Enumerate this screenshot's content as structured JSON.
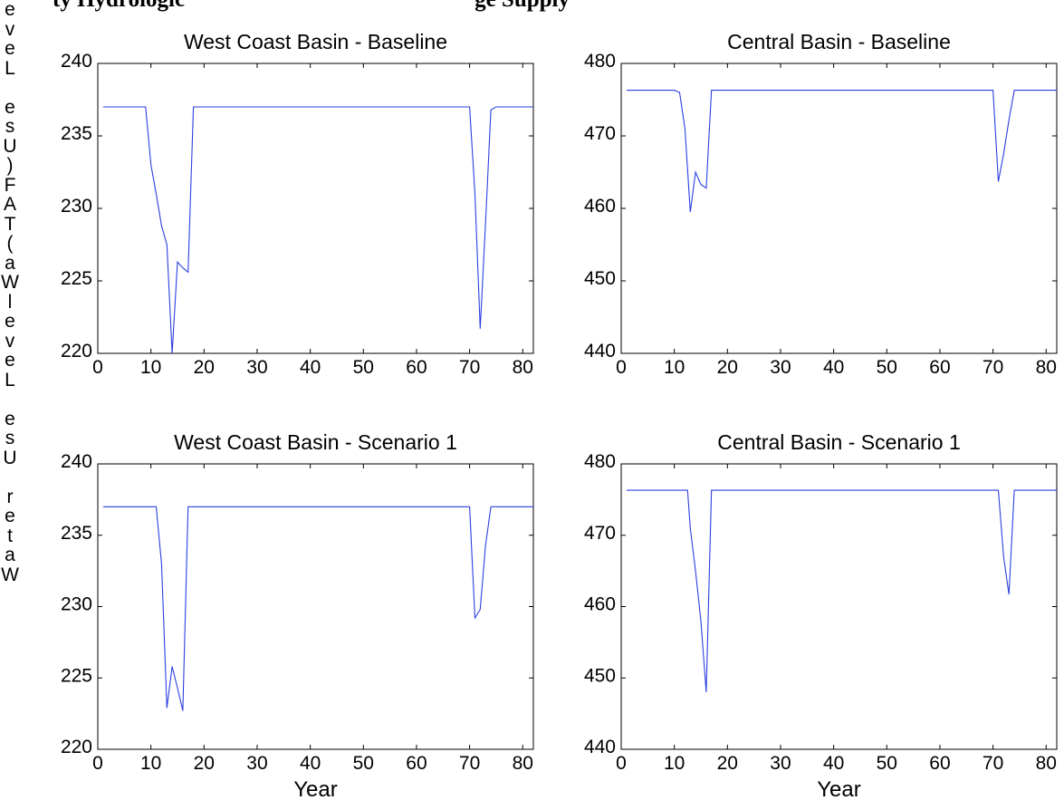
{
  "figure": {
    "title_left": "ty Hydrologic",
    "title_right": "ge Supply",
    "ylabel_letters": [
      "e",
      "v",
      "e",
      "L",
      "",
      "e",
      "s",
      "U",
      ")",
      "F",
      "A",
      "T",
      "(",
      "a",
      "W",
      "l",
      "e",
      "v",
      "e",
      "L",
      "",
      "e",
      "s",
      "U",
      "",
      "r",
      "e",
      "t",
      "a",
      "W"
    ]
  },
  "colors": {
    "line": "#2b3fe0",
    "axis": "#000000"
  },
  "chart_data": [
    {
      "type": "line",
      "title": "West Coast Basin - Baseline",
      "xlabel": "",
      "xlim": [
        0,
        82
      ],
      "ylim": [
        220,
        240
      ],
      "xticks": [
        0,
        10,
        20,
        30,
        40,
        50,
        60,
        70,
        80
      ],
      "yticks": [
        220,
        225,
        230,
        235,
        240
      ],
      "x": [
        1,
        9,
        10,
        11,
        12,
        13,
        14,
        15,
        16,
        17,
        18,
        70,
        71,
        72,
        73,
        74,
        75,
        82
      ],
      "y": [
        237,
        237,
        233,
        231,
        228.8,
        227.5,
        220,
        226.3,
        225.9,
        225.6,
        237,
        237,
        231,
        221.7,
        229,
        236.8,
        237,
        237
      ]
    },
    {
      "type": "line",
      "title": "Central Basin - Baseline",
      "xlabel": "",
      "xlim": [
        0,
        82
      ],
      "ylim": [
        440,
        480
      ],
      "xticks": [
        0,
        10,
        20,
        30,
        40,
        50,
        60,
        70,
        80
      ],
      "yticks": [
        440,
        450,
        460,
        470,
        480
      ],
      "x": [
        1,
        10,
        11,
        12,
        13,
        14,
        15,
        16,
        17,
        70,
        71,
        72,
        73,
        74,
        75,
        82
      ],
      "y": [
        476.3,
        476.3,
        476,
        471,
        459.5,
        465,
        463.3,
        462.8,
        476.3,
        476.3,
        463.7,
        467.5,
        472.2,
        476.3,
        476.3,
        476.3
      ]
    },
    {
      "type": "line",
      "title": "West Coast Basin - Scenario 1",
      "xlabel": "Year",
      "xlim": [
        0,
        82
      ],
      "ylim": [
        220,
        240
      ],
      "xticks": [
        0,
        10,
        20,
        30,
        40,
        50,
        60,
        70,
        80
      ],
      "yticks": [
        220,
        225,
        230,
        235,
        240
      ],
      "x": [
        1,
        11,
        12,
        13,
        14,
        15,
        16,
        17,
        18,
        70,
        71,
        72,
        73,
        74,
        75,
        82
      ],
      "y": [
        237,
        237,
        233,
        222.9,
        225.8,
        224.3,
        222.7,
        237,
        237,
        237,
        229.2,
        229.8,
        234.3,
        237,
        237,
        237
      ]
    },
    {
      "type": "line",
      "title": "Central Basin - Scenario 1",
      "xlabel": "Year",
      "xlim": [
        0,
        82
      ],
      "ylim": [
        440,
        480
      ],
      "xticks": [
        0,
        10,
        20,
        30,
        40,
        50,
        60,
        70,
        80
      ],
      "yticks": [
        440,
        450,
        460,
        470,
        480
      ],
      "x": [
        1,
        12.5,
        13,
        14,
        15,
        16,
        17,
        18,
        71,
        72,
        73,
        74,
        75,
        82
      ],
      "y": [
        476.3,
        476.3,
        471,
        465,
        458,
        448,
        476.3,
        476.3,
        476.3,
        467,
        461.7,
        476.3,
        476.3,
        476.3
      ]
    }
  ]
}
